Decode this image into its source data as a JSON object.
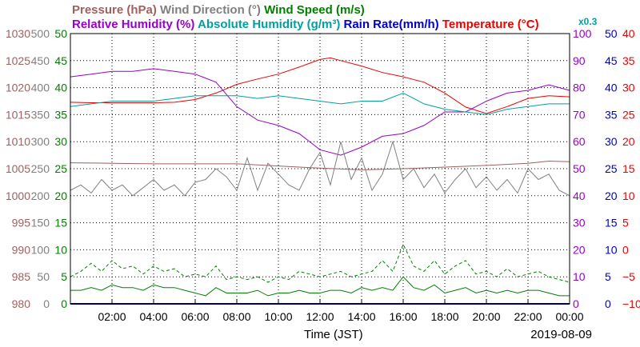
{
  "chart_data": {
    "type": "line",
    "date": "2019-08-09",
    "xlabel": "Time (JST)",
    "x_range_hours": [
      0,
      24
    ],
    "x_ticks": [
      "02:00",
      "04:00",
      "06:00",
      "08:00",
      "10:00",
      "12:00",
      "14:00",
      "16:00",
      "18:00",
      "20:00",
      "22:00",
      "00:00"
    ],
    "grid": true,
    "legend_placement": "top",
    "scale_note": "x0.3",
    "axes": [
      {
        "name": "Pressure (hPa)",
        "color": "#a06060",
        "range": [
          980,
          1030
        ],
        "ticks": [
          "1030",
          "1025",
          "1020",
          "1015",
          "1010",
          "1005",
          "1000",
          "995",
          "990",
          "985",
          "980"
        ]
      },
      {
        "name": "Wind Direction (°)",
        "color": "#808080",
        "range": [
          0,
          500
        ],
        "ticks": [
          "500",
          "450",
          "400",
          "350",
          "300",
          "250",
          "200",
          "150",
          "100",
          "50",
          "0"
        ]
      },
      {
        "name": "Wind Speed (m/s)",
        "color": "#008000",
        "range": [
          0,
          50
        ],
        "ticks": [
          "50",
          "45",
          "40",
          "35",
          "30",
          "25",
          "20",
          "15",
          "10",
          "5",
          "0"
        ]
      },
      {
        "name": "Relative Humidity (%)",
        "color": "#9900cc",
        "range": [
          0,
          100
        ],
        "ticks": [
          "100",
          "90",
          "80",
          "70",
          "60",
          "50",
          "40",
          "30",
          "20",
          "10",
          "0"
        ]
      },
      {
        "name": "Absolute Humidity (g/m³)",
        "color": "#00a0a0",
        "range": [
          0,
          100
        ]
      },
      {
        "name": "Rain Rate(mm/h)",
        "color": "#0000cc",
        "range": [
          0,
          50
        ],
        "ticks": [
          "50",
          "45",
          "40",
          "35",
          "30",
          "25",
          "20",
          "15",
          "10",
          "5",
          "0"
        ]
      },
      {
        "name": "Temperature (°C)",
        "color": "#ee0000",
        "range": [
          -10,
          40
        ],
        "ticks": [
          "40",
          "35",
          "30",
          "25",
          "20",
          "15",
          "10",
          "5",
          "0",
          "−5",
          "−10"
        ]
      }
    ],
    "legend": {
      "row1": [
        {
          "text": "Pressure (hPa)",
          "color": "#a06060"
        },
        {
          "text": "Wind Direction (°)",
          "color": "#808080"
        },
        {
          "text": "Wind Speed (m/s)",
          "color": "#008000"
        }
      ],
      "row2": [
        {
          "text": "Relative Humidity (%)",
          "color": "#9900cc"
        },
        {
          "text": "Absolute Humidity (g/m³)",
          "color": "#00a0a0"
        },
        {
          "text": "Rain Rate(mm/h)",
          "color": "#0000cc"
        },
        {
          "text": "Temperature (°C)",
          "color": "#ee0000"
        }
      ]
    },
    "series": [
      {
        "name": "Temperature (°C)",
        "axis": 6,
        "color": "#ee0000",
        "x": [
          0,
          1,
          2,
          3,
          4,
          5,
          6,
          7,
          8,
          9,
          10,
          11,
          12,
          12.5,
          13,
          14,
          15,
          16,
          17,
          18,
          19,
          20,
          21,
          22,
          23,
          24
        ],
        "values": [
          27.3,
          27.2,
          27.2,
          27.2,
          27.2,
          27.3,
          27.8,
          29,
          30.6,
          31.6,
          32.5,
          33.8,
          35.2,
          35.5,
          35,
          34,
          32.8,
          32,
          31,
          29,
          26.4,
          25.2,
          26.5,
          28,
          28.5,
          28.3
        ]
      },
      {
        "name": "Relative Humidity (%)",
        "axis": 3,
        "color": "#9900cc",
        "x": [
          0,
          1,
          2,
          3,
          4,
          5,
          6,
          7,
          8,
          9,
          10,
          11,
          12,
          13,
          14,
          15,
          16,
          17,
          18,
          19,
          19.5,
          20,
          21,
          22,
          23,
          24
        ],
        "values": [
          84,
          85,
          86,
          86,
          87,
          86,
          85,
          82,
          73,
          68,
          66,
          63,
          57,
          55,
          58,
          62,
          63,
          66,
          71,
          71,
          73,
          75,
          78,
          79,
          81,
          79
        ]
      },
      {
        "name": "Absolute Humidity (g/m³)",
        "axis": 4,
        "color": "#00a0a0",
        "x": [
          0,
          1,
          2,
          3,
          4,
          5,
          6,
          7,
          8,
          9,
          10,
          11,
          12,
          13,
          14,
          15,
          16,
          16.5,
          17,
          18,
          19,
          20,
          21,
          22,
          23,
          24
        ],
        "values": [
          73,
          74,
          75,
          75,
          75,
          76,
          77,
          77,
          77,
          76,
          77,
          76,
          75,
          74,
          75,
          75,
          78,
          76,
          74,
          72,
          71,
          70,
          72,
          73,
          74,
          74
        ]
      },
      {
        "name": "Pressure (hPa)",
        "axis": 0,
        "color": "#a06060",
        "x": [
          0,
          2,
          4,
          6,
          8,
          10,
          12,
          14,
          15,
          16,
          18,
          20,
          22,
          23,
          24
        ],
        "values": [
          1006.1,
          1006,
          1005.9,
          1005.9,
          1005.9,
          1005.5,
          1005.1,
          1004.8,
          1004.9,
          1005,
          1005.3,
          1005.6,
          1006,
          1006.4,
          1006.3
        ]
      },
      {
        "name": "Wind Direction (°)",
        "axis": 1,
        "color": "#808080",
        "x": [
          0,
          0.5,
          1,
          1.5,
          2,
          2.5,
          3,
          3.5,
          4,
          4.5,
          5,
          5.5,
          6,
          6.5,
          7,
          7.5,
          8,
          8.5,
          9,
          9.5,
          10,
          10.5,
          11,
          11.5,
          12,
          12.5,
          13,
          13.5,
          14,
          14.5,
          15,
          15.5,
          16,
          16.5,
          17,
          17.5,
          18,
          18.5,
          19,
          19.5,
          20,
          20.5,
          21,
          21.5,
          22,
          22.5,
          23,
          23.5,
          24
        ],
        "values": [
          210,
          220,
          205,
          230,
          210,
          220,
          200,
          215,
          230,
          210,
          220,
          200,
          225,
          230,
          250,
          235,
          210,
          270,
          210,
          260,
          240,
          220,
          210,
          250,
          280,
          220,
          300,
          230,
          270,
          210,
          240,
          300,
          230,
          250,
          215,
          240,
          205,
          230,
          250,
          215,
          235,
          210,
          230,
          205,
          250,
          230,
          240,
          210,
          200
        ]
      },
      {
        "name": "Wind Speed (m/s) max",
        "axis": 2,
        "color": "#008000",
        "dashed": true,
        "x": [
          0,
          0.5,
          1,
          1.5,
          2,
          2.5,
          3,
          3.5,
          4,
          4.5,
          5,
          5.5,
          6,
          6.5,
          7,
          7.5,
          8,
          8.5,
          9,
          9.5,
          10,
          10.5,
          11,
          11.5,
          12,
          12.5,
          13,
          13.5,
          14,
          14.5,
          15,
          15.5,
          16,
          16.5,
          17,
          17.5,
          18,
          18.5,
          19,
          19.5,
          20,
          20.5,
          21,
          21.5,
          22,
          22.5,
          23,
          23.5,
          24
        ],
        "values": [
          5,
          6,
          7.5,
          6,
          8,
          6.5,
          7,
          5.5,
          7,
          6,
          6.5,
          5,
          5.5,
          5,
          7,
          4.5,
          5,
          4.5,
          5,
          4,
          5,
          4.5,
          6,
          5.5,
          5,
          5.5,
          6,
          5,
          5.5,
          6,
          8,
          6,
          11,
          7,
          6,
          8,
          5.5,
          7,
          8,
          5.5,
          6,
          5,
          6.5,
          5,
          5.5,
          6,
          5,
          4.5,
          4
        ]
      },
      {
        "name": "Wind Speed (m/s)",
        "axis": 2,
        "color": "#008000",
        "x": [
          0,
          0.5,
          1,
          1.5,
          2,
          2.5,
          3,
          3.5,
          4,
          4.5,
          5,
          5.5,
          6,
          6.5,
          7,
          7.5,
          8,
          8.5,
          9,
          9.5,
          10,
          10.5,
          11,
          11.5,
          12,
          12.5,
          13,
          13.5,
          14,
          14.5,
          15,
          15.5,
          16,
          16.5,
          17,
          17.5,
          18,
          18.5,
          19,
          19.5,
          20,
          20.5,
          21,
          21.5,
          22,
          22.5,
          23,
          23.5,
          24
        ],
        "values": [
          2.5,
          2.5,
          3,
          2.5,
          3.5,
          3,
          3,
          2.5,
          3.5,
          3,
          3,
          2.5,
          2,
          1.5,
          3,
          2,
          2,
          2,
          2.5,
          1.5,
          2,
          2,
          2.5,
          2,
          2,
          2.5,
          2.5,
          2,
          3,
          2.5,
          3,
          2.5,
          5,
          3,
          2.5,
          3.5,
          2,
          2.5,
          3,
          2,
          2.5,
          2,
          2.5,
          2,
          2.5,
          2.5,
          2,
          1.5,
          1.5
        ]
      },
      {
        "name": "Rain Rate(mm/h)",
        "axis": 5,
        "color": "#0000cc",
        "x": [
          0,
          24
        ],
        "values": [
          0,
          0
        ]
      }
    ]
  }
}
